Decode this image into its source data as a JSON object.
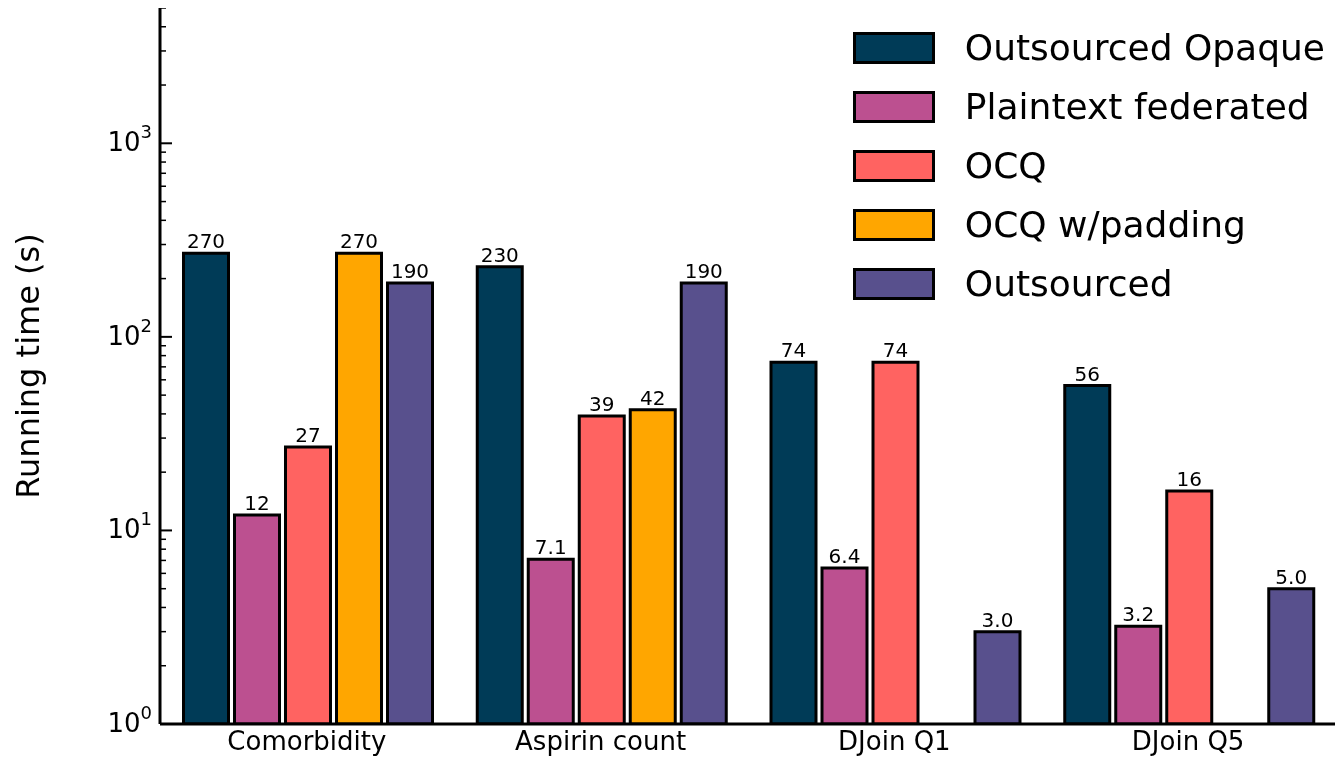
{
  "chart_data": {
    "type": "bar",
    "ylabel": "Running time (s)",
    "categories": [
      "Comorbidity",
      "Aspirin count",
      "DJoin Q1",
      "DJoin Q5"
    ],
    "series": [
      {
        "name": "Outsourced Opaque",
        "color": "#003b57",
        "values": [
          270,
          230,
          74,
          56
        ],
        "value_labels": [
          "270",
          "230",
          "74",
          "56"
        ]
      },
      {
        "name": "Plaintext federated",
        "color": "#bc5090",
        "values": [
          12,
          7.1,
          6.4,
          3.2
        ],
        "value_labels": [
          "12",
          "7.1",
          "6.4",
          "3.2"
        ]
      },
      {
        "name": "OCQ",
        "color": "#ff6361",
        "values": [
          27,
          39,
          74,
          16
        ],
        "value_labels": [
          "27",
          "39",
          "74",
          "16"
        ]
      },
      {
        "name": "OCQ w/padding",
        "color": "#ffa600",
        "values": [
          270,
          42,
          null,
          null
        ],
        "value_labels": [
          "270",
          "42",
          null,
          null
        ]
      },
      {
        "name": "Outsourced",
        "color": "#58508d",
        "values": [
          190,
          190,
          3.0,
          5.0
        ],
        "value_labels": [
          "190",
          "190",
          "3.0",
          "5.0"
        ]
      }
    ],
    "log": "y",
    "ylim": [
      1,
      5000
    ],
    "yticks": [
      {
        "value": 1,
        "label": "10$^{0}$"
      },
      {
        "value": 2,
        "label": null
      },
      {
        "value": 3,
        "label": null
      },
      {
        "value": 4,
        "label": null
      },
      {
        "value": 5,
        "label": null
      },
      {
        "value": 6,
        "label": null
      },
      {
        "value": 7,
        "label": null
      },
      {
        "value": 8,
        "label": null
      },
      {
        "value": 9,
        "label": null
      },
      {
        "value": 10,
        "label": "10$^{1}$"
      },
      {
        "value": 20,
        "label": null
      },
      {
        "value": 30,
        "label": null
      },
      {
        "value": 40,
        "label": null
      },
      {
        "value": 50,
        "label": null
      },
      {
        "value": 60,
        "label": null
      },
      {
        "value": 70,
        "label": null
      },
      {
        "value": 80,
        "label": null
      },
      {
        "value": 90,
        "label": null
      },
      {
        "value": 100,
        "label": "10$^{2}$"
      },
      {
        "value": 200,
        "label": null
      },
      {
        "value": 300,
        "label": null
      },
      {
        "value": 400,
        "label": null
      },
      {
        "value": 500,
        "label": null
      },
      {
        "value": 600,
        "label": null
      },
      {
        "value": 700,
        "label": null
      },
      {
        "value": 800,
        "label": null
      },
      {
        "value": 900,
        "label": null
      },
      {
        "value": 1000,
        "label": "10$^{3}$"
      },
      {
        "value": 2000,
        "label": null
      },
      {
        "value": 3000,
        "label": null
      },
      {
        "value": 4000,
        "label": null
      },
      {
        "value": 5000,
        "label": null
      }
    ],
    "grid": false,
    "legend": "top right"
  }
}
